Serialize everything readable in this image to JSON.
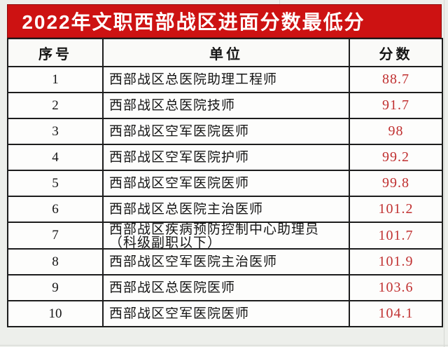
{
  "title": "2022年文职西部战区进面分数最低分",
  "colors": {
    "title_bg": "#cd1212",
    "title_text": "#ffffff",
    "score_text": "#c03030",
    "border": "#1d1d1d",
    "page_bg": "#edefeb",
    "cell_bg": "#fdfdfc"
  },
  "table": {
    "headers": [
      "序号",
      "单位",
      "分数"
    ],
    "rows": [
      {
        "no": "1",
        "unit": "西部战区总医院助理工程师",
        "score": "88.7"
      },
      {
        "no": "2",
        "unit": "西部战区总医院技师",
        "score": "91.7"
      },
      {
        "no": "3",
        "unit": "西部战区空军医院医师",
        "score": "98"
      },
      {
        "no": "4",
        "unit": "西部战区空军医院护师",
        "score": "99.2"
      },
      {
        "no": "5",
        "unit": "西部战区空军医院医师",
        "score": "99.8"
      },
      {
        "no": "6",
        "unit": "西部战区总医院主治医师",
        "score": "101.2"
      },
      {
        "no": "7",
        "unit": "西部战区疾病预防控制中心助理员（科级副职以下）",
        "score": "101.7"
      },
      {
        "no": "8",
        "unit": "西部战区空军医院主治医师",
        "score": "101.9"
      },
      {
        "no": "9",
        "unit": "西部战区总医院医师",
        "score": "103.6"
      },
      {
        "no": "10",
        "unit": "西部战区空军医院医师",
        "score": "104.1"
      }
    ]
  }
}
